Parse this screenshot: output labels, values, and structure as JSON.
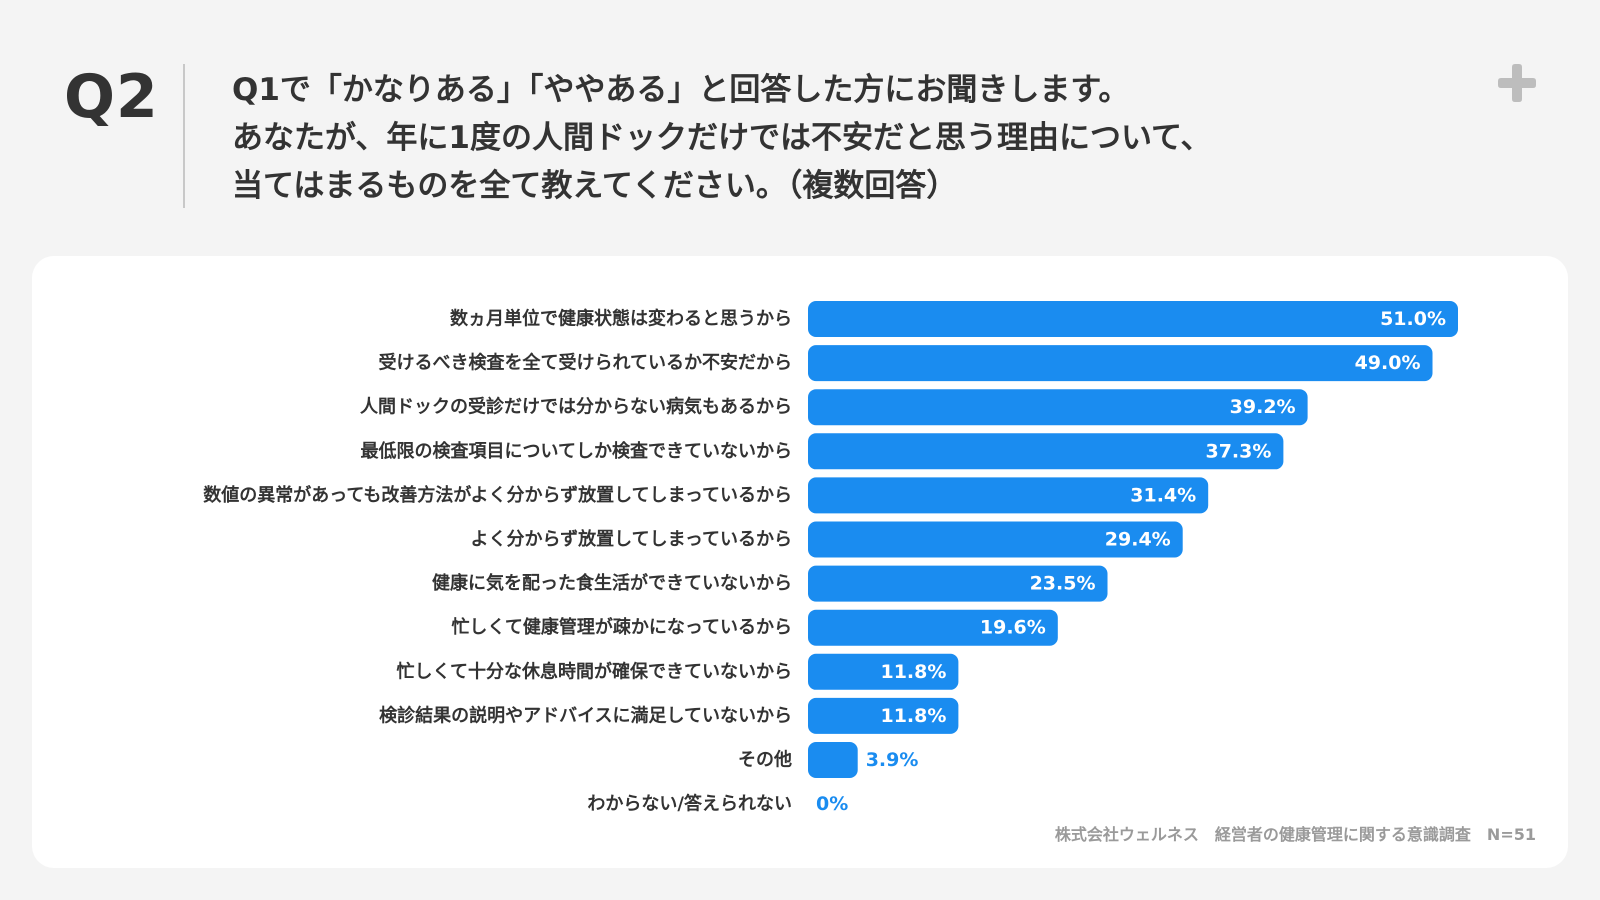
{
  "header": {
    "q_label": "Q2",
    "question_lines": [
      "Q1で「かなりある」「ややある」と回答した方にお聞きします。",
      "あなたが、年に1度の人間ドックだけでは不安だと思う理由について、",
      "当てはまるものを全て教えてください。（複数回答）"
    ]
  },
  "icons": {
    "plus": "plus-icon"
  },
  "colors": {
    "bar": "#1a8cf0",
    "label_outside": "#1a8cf0",
    "label_inside": "#ffffff",
    "plus_icon": "#bdbdbd"
  },
  "chart_data": {
    "type": "bar",
    "orientation": "horizontal",
    "categories": [
      "数ヵ月単位で健康状態は変わると思うから",
      "受けるべき検査を全て受けられているか不安だから",
      "人間ドックの受診だけでは分からない病気もあるから",
      "最低限の検査項目についてしか検査できていないから",
      "数値の異常があっても改善方法がよく分からず放置してしまっているから",
      "よく分からず放置してしまっているから",
      "健康に気を配った食生活ができていないから",
      "忙しくて健康管理が疎かになっているから",
      "忙しくて十分な休息時間が確保できていないから",
      "検診結果の説明やアドバイスに満足していないから",
      "その他",
      "わからない/答えられない"
    ],
    "values": [
      51.0,
      49.0,
      39.2,
      37.3,
      31.4,
      29.4,
      23.5,
      19.6,
      11.8,
      11.8,
      3.9,
      0
    ],
    "value_labels": [
      "51.0%",
      "49.0%",
      "39.2%",
      "37.3%",
      "31.4%",
      "29.4%",
      "23.5%",
      "19.6%",
      "11.8%",
      "11.8%",
      "3.9%",
      "0%"
    ],
    "xlim": [
      0,
      51
    ],
    "unit": "%",
    "grid": false,
    "legend": "none"
  },
  "footer": {
    "source": "株式会社ウェルネス　経営者の健康管理に関する意識調査　N=51"
  }
}
